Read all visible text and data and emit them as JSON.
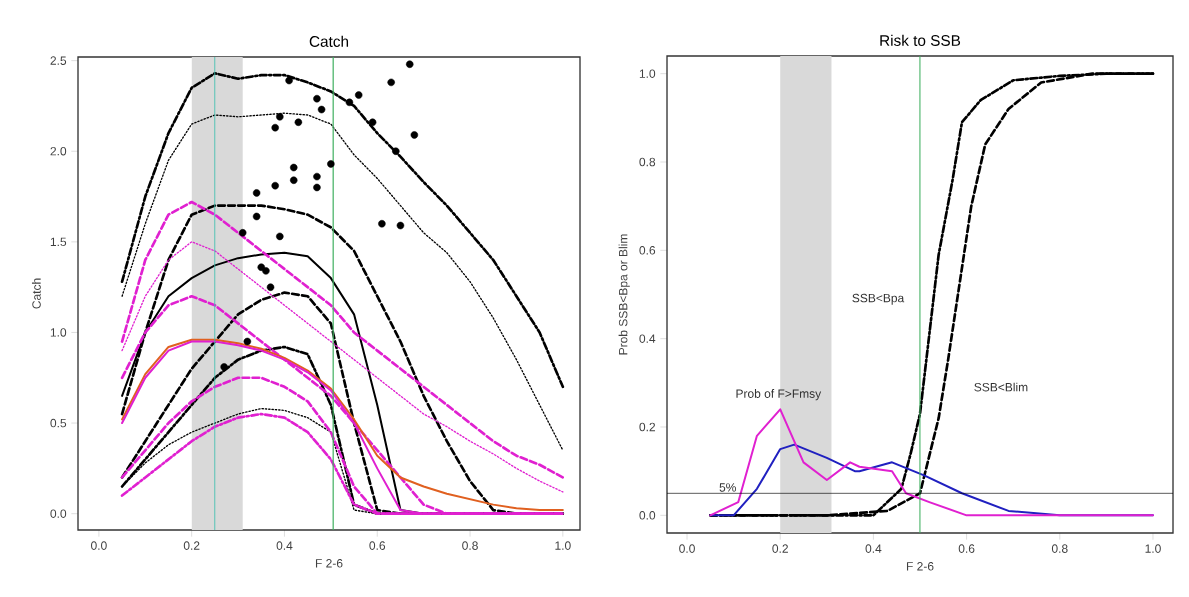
{
  "chart_data": [
    {
      "type": "line",
      "title": "Catch",
      "xlabel": "F 2-6",
      "ylabel": "Catch",
      "x": [
        0.05,
        0.1,
        0.15,
        0.2,
        0.25,
        0.3,
        0.35,
        0.4,
        0.45,
        0.5,
        0.55,
        0.6,
        0.65,
        0.7,
        0.75,
        0.8,
        0.85,
        0.9,
        0.95,
        1.0
      ],
      "xlim": [
        -0.045,
        1.037
      ],
      "ylim": [
        -0.09,
        2.52
      ],
      "xticks": [
        {
          "value": 0,
          "label": "0.0"
        },
        {
          "value": 0.2,
          "label": "0.2"
        },
        {
          "value": 0.4,
          "label": "0.4"
        },
        {
          "value": 0.6,
          "label": "0.6"
        },
        {
          "value": 0.8,
          "label": "0.8"
        },
        {
          "value": 1,
          "label": "1.0"
        }
      ],
      "yticks": [
        {
          "value": 0,
          "label": "0.0"
        },
        {
          "value": 0.5,
          "label": "0.5"
        },
        {
          "value": 1,
          "label": "1.0"
        },
        {
          "value": 1.5,
          "label": "1.5"
        },
        {
          "value": 2,
          "label": "2.0"
        },
        {
          "value": 2.5,
          "label": "2.5"
        }
      ],
      "bands": [
        {
          "axis": "x",
          "from": 0.2,
          "to": 0.31,
          "color": "#d9d9d9"
        }
      ],
      "series": [
        {
          "type": "line",
          "color": "#000000",
          "line_style": "dashdot",
          "values": [
            1.28,
            1.75,
            2.1,
            2.35,
            2.43,
            2.4,
            2.42,
            2.42,
            2.38,
            2.33,
            2.25,
            2.1,
            1.97,
            1.83,
            1.7,
            1.55,
            1.4,
            1.2,
            1.0,
            0.7
          ]
        },
        {
          "type": "line",
          "color": "#000000",
          "line_style": "dotted",
          "values": [
            1.2,
            1.6,
            1.95,
            2.15,
            2.2,
            2.19,
            2.2,
            2.21,
            2.2,
            2.15,
            1.98,
            1.85,
            1.7,
            1.55,
            1.44,
            1.28,
            1.08,
            0.85,
            0.6,
            0.35
          ]
        },
        {
          "type": "line",
          "color": "#000000",
          "line_style": "dashed",
          "values": [
            0.55,
            1.0,
            1.4,
            1.65,
            1.7,
            1.7,
            1.7,
            1.68,
            1.65,
            1.58,
            1.45,
            1.2,
            0.95,
            0.65,
            0.4,
            0.18,
            0.02,
            0,
            0,
            0
          ]
        },
        {
          "type": "line",
          "color": "#000000",
          "line_style": "solid",
          "values": [
            0.65,
            1.0,
            1.2,
            1.3,
            1.37,
            1.41,
            1.43,
            1.44,
            1.42,
            1.3,
            1.1,
            0.6,
            0.02,
            0,
            0,
            0,
            0,
            0,
            0,
            0
          ]
        },
        {
          "type": "line",
          "color": "#000000",
          "line_style": "dashed",
          "values": [
            0.2,
            0.4,
            0.6,
            0.8,
            0.95,
            1.1,
            1.18,
            1.22,
            1.2,
            1.05,
            0.5,
            0.02,
            0,
            0,
            0,
            0,
            0,
            0,
            0,
            0
          ]
        },
        {
          "type": "line",
          "color": "#000000",
          "line_style": "dashdot",
          "values": [
            0.15,
            0.3,
            0.45,
            0.6,
            0.75,
            0.85,
            0.9,
            0.92,
            0.88,
            0.6,
            0.05,
            0,
            0,
            0,
            0,
            0,
            0,
            0,
            0,
            0
          ]
        },
        {
          "type": "line",
          "color": "#000000",
          "line_style": "dotted",
          "values": [
            0.15,
            0.28,
            0.38,
            0.45,
            0.5,
            0.55,
            0.58,
            0.57,
            0.53,
            0.45,
            0.02,
            0,
            0,
            0,
            0,
            0,
            0,
            0,
            0,
            0
          ]
        },
        {
          "type": "line",
          "color": "#e020d0",
          "line_style": "dashed",
          "values": [
            0.95,
            1.4,
            1.65,
            1.72,
            1.65,
            1.55,
            1.45,
            1.35,
            1.25,
            1.15,
            1.0,
            0.9,
            0.8,
            0.7,
            0.6,
            0.5,
            0.4,
            0.32,
            0.27,
            0.2
          ]
        },
        {
          "type": "line",
          "color": "#e020d0",
          "line_style": "dotted",
          "values": [
            0.9,
            1.2,
            1.4,
            1.5,
            1.45,
            1.35,
            1.25,
            1.15,
            1.05,
            0.95,
            0.85,
            0.75,
            0.65,
            0.55,
            0.48,
            0.4,
            0.33,
            0.25,
            0.18,
            0.12
          ]
        },
        {
          "type": "line",
          "color": "#e020d0",
          "line_style": "dashed",
          "values": [
            0.75,
            1.0,
            1.15,
            1.2,
            1.15,
            1.05,
            0.95,
            0.85,
            0.75,
            0.65,
            0.5,
            0.35,
            0.2,
            0.05,
            0,
            0,
            0,
            0,
            0,
            0
          ]
        },
        {
          "type": "line",
          "color": "#e06020",
          "line_style": "solid",
          "values": [
            0.52,
            0.77,
            0.92,
            0.96,
            0.96,
            0.94,
            0.91,
            0.86,
            0.79,
            0.69,
            0.52,
            0.32,
            0.2,
            0.15,
            0.11,
            0.08,
            0.05,
            0.03,
            0.02,
            0.02
          ]
        },
        {
          "type": "line",
          "color": "#e020d0",
          "line_style": "solid",
          "values": [
            0.5,
            0.75,
            0.9,
            0.95,
            0.95,
            0.93,
            0.9,
            0.85,
            0.78,
            0.68,
            0.5,
            0.25,
            0.02,
            0,
            0,
            0,
            0,
            0,
            0,
            0
          ]
        },
        {
          "type": "line",
          "color": "#e020d0",
          "line_style": "dashed",
          "values": [
            0.2,
            0.35,
            0.5,
            0.62,
            0.7,
            0.75,
            0.75,
            0.7,
            0.62,
            0.45,
            0.15,
            0,
            0,
            0,
            0,
            0,
            0,
            0,
            0,
            0
          ]
        },
        {
          "type": "line",
          "color": "#e020d0",
          "line_style": "dashdot",
          "values": [
            0.1,
            0.2,
            0.3,
            0.4,
            0.48,
            0.53,
            0.55,
            0.53,
            0.45,
            0.3,
            0.05,
            0,
            0,
            0,
            0,
            0,
            0,
            0,
            0,
            0
          ]
        },
        {
          "type": "scatter",
          "color": "#000000",
          "marker": "circle",
          "x": [
            0.41,
            0.47,
            0.48,
            0.39,
            0.38,
            0.43,
            0.42,
            0.42,
            0.5,
            0.47,
            0.47,
            0.38,
            0.34,
            0.34,
            0.31,
            0.39,
            0.35,
            0.36,
            0.37,
            0.67,
            0.63,
            0.56,
            0.54,
            0.59,
            0.68,
            0.64,
            0.61,
            0.65,
            0.32,
            0.27
          ],
          "values": [
            2.39,
            2.29,
            2.23,
            2.19,
            2.13,
            2.16,
            1.91,
            1.84,
            1.93,
            1.86,
            1.8,
            1.81,
            1.77,
            1.64,
            1.55,
            1.53,
            1.36,
            1.34,
            1.25,
            2.48,
            2.38,
            2.31,
            2.27,
            2.16,
            2.09,
            2.0,
            1.6,
            1.59,
            0.95,
            0.81
          ]
        }
      ],
      "ref_lines": [
        {
          "axis": "x",
          "value": 0.25,
          "color": "#40c0b0"
        },
        {
          "axis": "x",
          "value": 0.505,
          "color": "#40b060"
        }
      ]
    },
    {
      "type": "line",
      "title": "Risk to SSB",
      "xlabel": "F 2-6",
      "ylabel": "Prob SSB<Bpa or Blim",
      "xlim": [
        -0.043,
        1.043
      ],
      "ylim": [
        -0.04,
        1.04
      ],
      "xticks": [
        {
          "value": 0,
          "label": "0.0"
        },
        {
          "value": 0.2,
          "label": "0.2"
        },
        {
          "value": 0.4,
          "label": "0.4"
        },
        {
          "value": 0.6,
          "label": "0.6"
        },
        {
          "value": 0.8,
          "label": "0.8"
        },
        {
          "value": 1,
          "label": "1.0"
        }
      ],
      "yticks": [
        {
          "value": 0,
          "label": "0.0"
        },
        {
          "value": 0.2,
          "label": "0.2"
        },
        {
          "value": 0.4,
          "label": "0.4"
        },
        {
          "value": 0.6,
          "label": "0.6"
        },
        {
          "value": 0.8,
          "label": "0.8"
        },
        {
          "value": 1,
          "label": "1.0"
        }
      ],
      "bands": [
        {
          "axis": "x",
          "from": 0.2,
          "to": 0.31,
          "color": "#d9d9d9"
        }
      ],
      "series": [
        {
          "type": "line",
          "color": "#000000",
          "line_style": "dashdot",
          "x": [
            0.05,
            0.1,
            0.2,
            0.3,
            0.4,
            0.46,
            0.48,
            0.5,
            0.51,
            0.52,
            0.54,
            0.57,
            0.59,
            0.63,
            0.7,
            0.8,
            0.9,
            1.0
          ],
          "values": [
            0,
            0,
            0,
            0,
            0,
            0.06,
            0.14,
            0.23,
            0.32,
            0.41,
            0.59,
            0.76,
            0.89,
            0.94,
            0.985,
            0.995,
            1,
            1
          ]
        },
        {
          "type": "line",
          "color": "#000000",
          "line_style": "dashed",
          "x": [
            0.05,
            0.2,
            0.3,
            0.43,
            0.5,
            0.54,
            0.56,
            0.59,
            0.61,
            0.64,
            0.69,
            0.76,
            0.87,
            1.0
          ],
          "values": [
            0,
            0,
            0,
            0.01,
            0.05,
            0.22,
            0.35,
            0.56,
            0.7,
            0.84,
            0.92,
            0.98,
            1.0,
            1.0
          ]
        },
        {
          "type": "line",
          "color": "#2020c0",
          "line_style": "solid",
          "x": [
            0.05,
            0.1,
            0.15,
            0.2,
            0.23,
            0.3,
            0.36,
            0.37,
            0.44,
            0.51,
            0.59,
            0.69,
            0.8,
            0.9,
            1.0
          ],
          "values": [
            0,
            0,
            0.06,
            0.15,
            0.16,
            0.13,
            0.1,
            0.1,
            0.12,
            0.09,
            0.05,
            0.01,
            0,
            0,
            0
          ]
        },
        {
          "type": "line",
          "color": "#e020d0",
          "line_style": "solid",
          "x": [
            0.05,
            0.11,
            0.15,
            0.2,
            0.25,
            0.3,
            0.35,
            0.37,
            0.44,
            0.47,
            0.52,
            0.6,
            0.7,
            0.8,
            0.9,
            1.0
          ],
          "values": [
            0,
            0.03,
            0.18,
            0.24,
            0.12,
            0.08,
            0.12,
            0.11,
            0.1,
            0.05,
            0.03,
            0,
            0,
            0,
            0,
            0
          ]
        }
      ],
      "ref_lines": [
        {
          "axis": "x",
          "value": 0.5,
          "color": "#40b060"
        },
        {
          "axis": "y",
          "value": 0.05,
          "label": "5%",
          "color": "#000000"
        }
      ],
      "annotations": [
        "SSB<Bpa",
        "SSB<Blim",
        "Prob of F>Fmsy"
      ]
    }
  ]
}
